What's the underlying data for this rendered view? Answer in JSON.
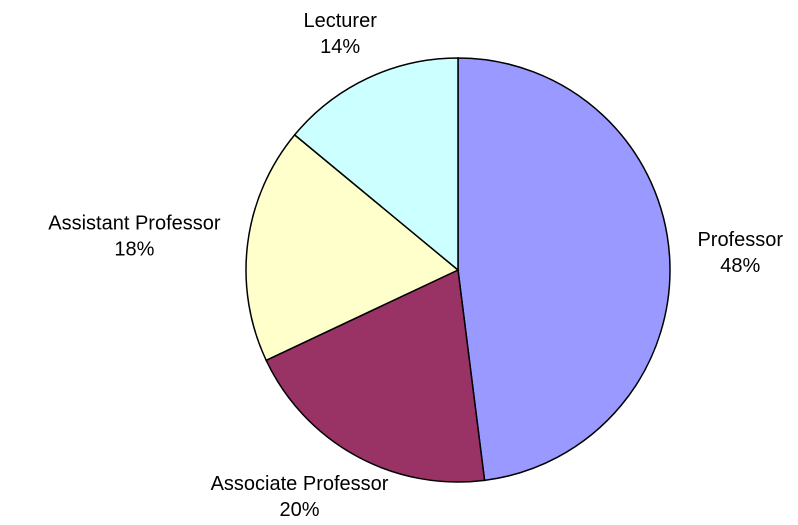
{
  "chart_data": {
    "type": "pie",
    "categories": [
      "Professor",
      "Associate Professor",
      "Assistant Professor",
      "Lecturer"
    ],
    "values": [
      48,
      20,
      18,
      14
    ],
    "value_labels": [
      "48%",
      "20%",
      "18%",
      "14%"
    ],
    "colors": [
      "#9999ff",
      "#993366",
      "#ffffcc",
      "#ccffff"
    ]
  }
}
